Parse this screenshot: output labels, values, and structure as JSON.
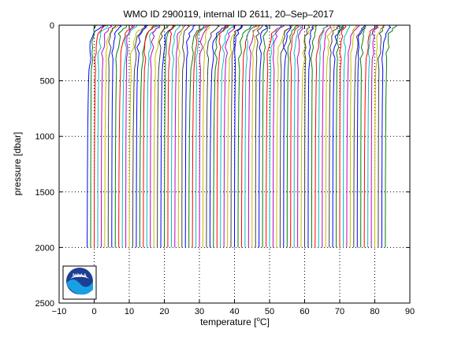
{
  "chart_data": {
    "type": "line",
    "title": "WMO ID 2900119, internal ID 2611, 20–Sep–2017",
    "xlabel_prefix": "temperature [",
    "xlabel_degree": "o",
    "xlabel_suffix": "C]",
    "ylabel": "pressure [dbar]",
    "xlim": [
      -10,
      90
    ],
    "ylim": [
      2500,
      0
    ],
    "x_ticks": [
      -10,
      0,
      10,
      20,
      30,
      40,
      50,
      60,
      70,
      80,
      90
    ],
    "x_tick_labels": [
      "−10",
      "0",
      "10",
      "20",
      "30",
      "40",
      "50",
      "60",
      "70",
      "80",
      "90"
    ],
    "y_ticks": [
      0,
      500,
      1000,
      1500,
      2000,
      2500
    ],
    "y_tick_labels": [
      "0",
      "500",
      "1000",
      "1500",
      "2000",
      "2500"
    ],
    "grid": true,
    "grid_style": "dotted",
    "profile_count": 86,
    "profile_offset_step": 1.0,
    "profile_start_x": -2.0,
    "pressure_levels": [
      0,
      10,
      20,
      30,
      50,
      75,
      100,
      150,
      200,
      250,
      300,
      400,
      500,
      600,
      700,
      800,
      900,
      1000,
      1200,
      1400,
      1600,
      1800,
      2000
    ],
    "profile_shape_offsets": [
      2.2,
      2.1,
      2.0,
      1.7,
      1.2,
      0.9,
      0.7,
      0.55,
      0.45,
      0.38,
      0.32,
      0.25,
      0.2,
      0.16,
      0.13,
      0.11,
      0.09,
      0.07,
      0.05,
      0.03,
      0.02,
      0.01,
      0.0
    ],
    "series_colors": [
      "#0000ff",
      "#008000",
      "#ff0000",
      "#00bfbf",
      "#bf00bf",
      "#bfbf00",
      "#404040"
    ],
    "logo_text": "NOAA"
  }
}
